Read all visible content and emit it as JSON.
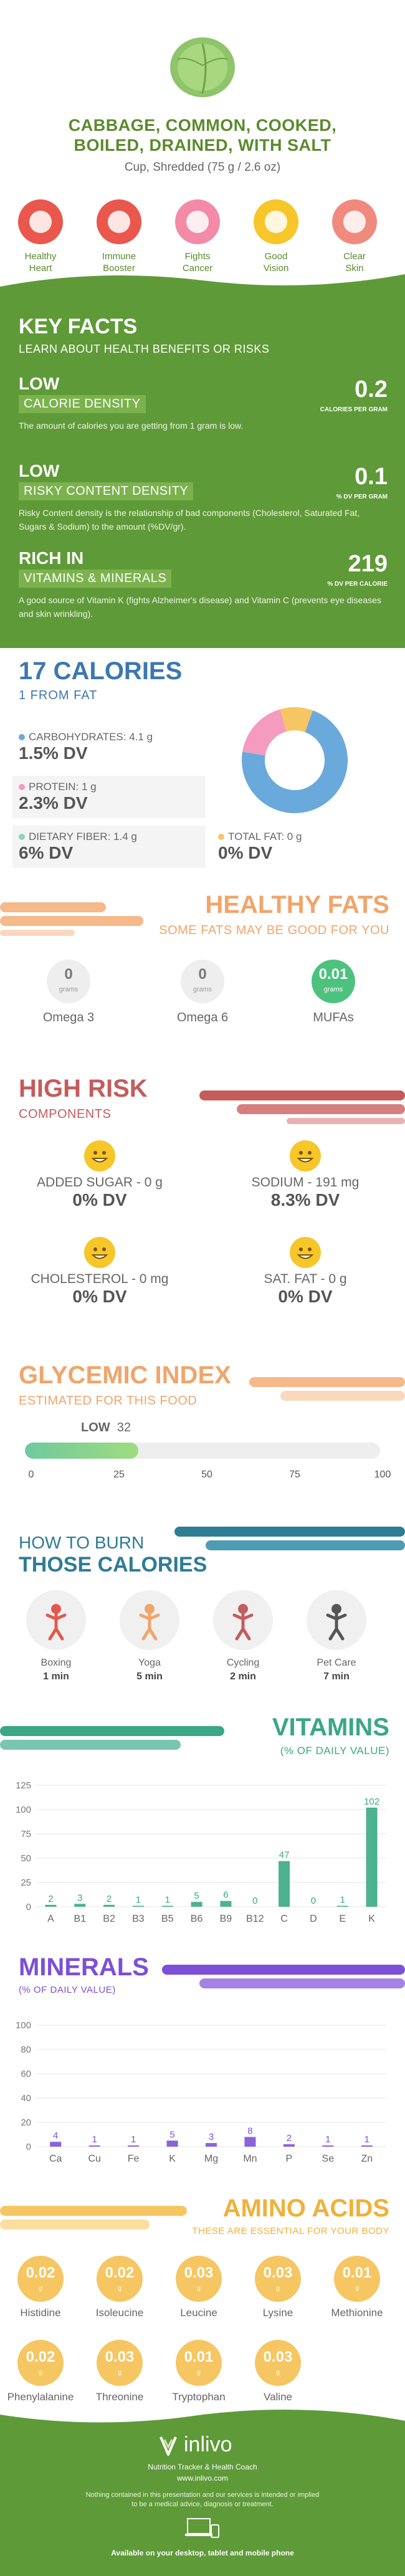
{
  "header": {
    "title_line1": "CABBAGE, COMMON, COOKED,",
    "title_line2": "BOILED, DRAINED, WITH SALT",
    "serving": "Cup, Shredded (75 g / 2.6 oz)",
    "benefits": [
      {
        "label_line1": "Healthy",
        "label_line2": "Heart",
        "icon": "heart-icon",
        "color": "#e9574d"
      },
      {
        "label_line1": "Immune",
        "label_line2": "Booster",
        "icon": "shield-icon",
        "color": "#e9574d"
      },
      {
        "label_line1": "Fights",
        "label_line2": "Cancer",
        "icon": "ribbon-icon",
        "color": "#f28aa8"
      },
      {
        "label_line1": "Good",
        "label_line2": "Vision",
        "icon": "eye-icon",
        "color": "#f6c62a"
      },
      {
        "label_line1": "Clear",
        "label_line2": "Skin",
        "icon": "face-icon",
        "color": "#f08a7e"
      }
    ]
  },
  "key_facts": {
    "title": "KEY FACTS",
    "subtitle": "LEARN ABOUT HEALTH BENEFITS OR RISKS",
    "items": [
      {
        "level": "LOW",
        "tag": "CALORIE DENSITY",
        "value": "0.2",
        "unit": "CALORIES PER GRAM",
        "desc": "The amount of calories you are getting from 1 gram is low."
      },
      {
        "level": "LOW",
        "tag": "RISKY CONTENT DENSITY",
        "value": "0.1",
        "unit": "% DV PER GRAM",
        "desc": "Risky Content density is the relationship of bad components (Cholesterol, Saturated Fat, Sugars & Sodium) to the amount (%DV/gr)."
      },
      {
        "level": "RICH IN",
        "tag": "VITAMINS & MINERALS",
        "value": "219",
        "unit": "% DV PER CALORIE",
        "desc": "A good source of Vitamin K (fights Alzheimer's disease) and Vitamin C (prevents eye diseases and skin wrinkling)."
      }
    ]
  },
  "calories": {
    "title": "17 CALORIES",
    "subtitle": "1 FROM FAT",
    "carbs_label": "CARBOHYDRATES: 4.1 g",
    "carbs_dv": "1.5% DV",
    "carbs_color": "#6aa9dc",
    "protein_label": "PROTEIN: 1 g",
    "protein_dv": "2.3% DV",
    "protein_color": "#f59bbf",
    "fiber_label": "DIETARY FIBER: 1.4 g",
    "fiber_dv": "6% DV",
    "fiber_color": "#8fd3c0",
    "fat_label": "TOTAL FAT: 0 g",
    "fat_dv": "0% DV",
    "fat_color": "#f6c662",
    "pie": {
      "carbs": 72,
      "protein": 18,
      "fat": 10
    }
  },
  "fats": {
    "title": "HEALTHY FATS",
    "subtitle": "SOME FATS MAY BE GOOD FOR YOU",
    "items": [
      {
        "value": "0",
        "unit": "grams",
        "label": "Omega 3"
      },
      {
        "value": "0",
        "unit": "grams",
        "label": "Omega 6"
      },
      {
        "value": "0.01",
        "unit": "grams",
        "label": "MUFAs"
      }
    ]
  },
  "risk": {
    "title": "HIGH RISK",
    "subtitle": "COMPONENTS",
    "items": [
      {
        "label": "ADDED SUGAR - 0 g",
        "dv": "0% DV"
      },
      {
        "label": "SODIUM - 191 mg",
        "dv": "8.3% DV"
      },
      {
        "label": "CHOLESTEROL - 0 mg",
        "dv": "0% DV"
      },
      {
        "label": "SAT. FAT - 0 g",
        "dv": "0% DV"
      }
    ]
  },
  "glycemic": {
    "title": "GLYCEMIC INDEX",
    "subtitle": "ESTIMATED FOR THIS FOOD",
    "level": "LOW",
    "value": "32",
    "fraction": 0.32,
    "ticks": [
      "0",
      "25",
      "50",
      "75",
      "100"
    ]
  },
  "burn": {
    "title1": "HOW TO BURN",
    "title2": "THOSE CALORIES",
    "items": [
      {
        "name": "Boxing",
        "time": "1 min",
        "icon": "boxing-icon"
      },
      {
        "name": "Yoga",
        "time": "5 min",
        "icon": "yoga-icon"
      },
      {
        "name": "Cycling",
        "time": "2 min",
        "icon": "cycling-icon"
      },
      {
        "name": "Pet Care",
        "time": "7 min",
        "icon": "dog-walk-icon"
      }
    ]
  },
  "vitamins": {
    "title": "VITAMINS",
    "subtitle": "(% OF DAILY VALUE)",
    "yticks": [
      "0",
      "25",
      "50",
      "75",
      "100",
      "125"
    ],
    "categories": [
      "A",
      "B1",
      "B2",
      "B3",
      "B5",
      "B6",
      "B9",
      "B12",
      "C",
      "D",
      "E",
      "K"
    ],
    "values": [
      2,
      3,
      2,
      1,
      1,
      5,
      6,
      0,
      47,
      0,
      1,
      102
    ],
    "labels": [
      "2",
      "3",
      "2",
      "1",
      "1",
      "5",
      "6",
      "0",
      "47",
      "0",
      "1",
      "102"
    ]
  },
  "minerals": {
    "title": "MINERALS",
    "subtitle": "(% OF DAILY VALUE)",
    "yticks": [
      "0",
      "20",
      "40",
      "60",
      "80",
      "100"
    ],
    "categories": [
      "Ca",
      "Cu",
      "Fe",
      "K",
      "Mg",
      "Mn",
      "P",
      "Se",
      "Zn"
    ],
    "values": [
      4,
      1,
      1,
      5,
      3,
      8,
      2,
      1,
      1
    ],
    "labels": [
      "4",
      "1",
      "1",
      "5",
      "3",
      "8",
      "2",
      "1",
      "1"
    ]
  },
  "amino": {
    "title": "AMINO ACIDS",
    "subtitle": "THESE ARE ESSENTIAL FOR YOUR BODY",
    "unit": "g",
    "items": [
      {
        "value": "0.02",
        "label": "Histidine"
      },
      {
        "value": "0.02",
        "label": "Isoleucine"
      },
      {
        "value": "0.03",
        "label": "Leucine"
      },
      {
        "value": "0.03",
        "label": "Lysine"
      },
      {
        "value": "0.01",
        "label": "Methionine"
      },
      {
        "value": "0.02",
        "label": "Phenylalanine"
      },
      {
        "value": "0.03",
        "label": "Threonine"
      },
      {
        "value": "0.01",
        "label": "Tryptophan"
      },
      {
        "value": "0.03",
        "label": "Valine"
      }
    ]
  },
  "footer": {
    "brand": "inlivo",
    "tagline": "Nutrition Tracker & Health Coach",
    "url": "www.inlivo.com",
    "disclaimer1": "Nothing contained in this presentation and our services is intended or implied",
    "disclaimer2": "to be a medical advice, diagnosis or treatment.",
    "available": "Available on your desktop, tablet and mobile phone"
  }
}
